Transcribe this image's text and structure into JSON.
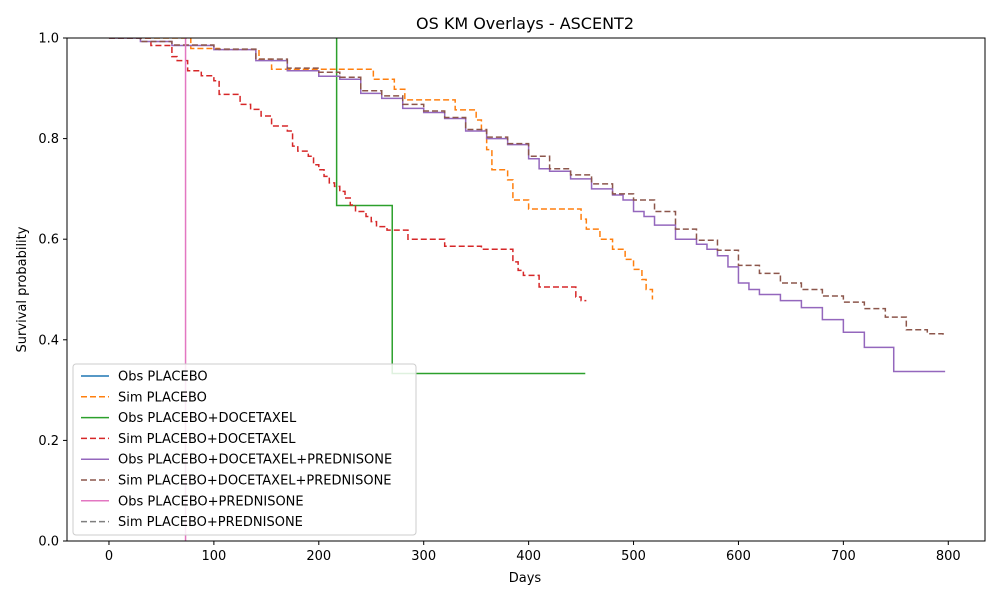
{
  "chart_data": {
    "type": "line",
    "title": "OS KM Overlays - ASCENT2",
    "xlabel": "Days",
    "ylabel": "Survival probability",
    "xlim": [
      -40,
      835
    ],
    "ylim": [
      0.0,
      1.0
    ],
    "x_ticks": [
      0,
      100,
      200,
      300,
      400,
      500,
      600,
      700,
      800
    ],
    "y_ticks": [
      0.0,
      0.2,
      0.4,
      0.6,
      0.8,
      1.0
    ],
    "y_tick_labels": [
      "0.0",
      "0.2",
      "0.4",
      "0.6",
      "0.8",
      "1.0"
    ],
    "grid": false,
    "legend_position": "lower-left",
    "step": true,
    "series": [
      {
        "name": "Obs PLACEBO",
        "color": "#1f77b4",
        "dash": "solid",
        "x": [],
        "y": []
      },
      {
        "name": "Sim PLACEBO",
        "color": "#ff7f0e",
        "dash": "dashed",
        "x": [
          0,
          78,
          105,
          143,
          155,
          192,
          252,
          272,
          282,
          330,
          350,
          355,
          360,
          365,
          380,
          385,
          400,
          450,
          455,
          468,
          480,
          492,
          500,
          508,
          512,
          518
        ],
        "y": [
          1.0,
          0.979,
          0.977,
          0.958,
          0.938,
          0.938,
          0.918,
          0.898,
          0.877,
          0.857,
          0.837,
          0.816,
          0.778,
          0.738,
          0.718,
          0.678,
          0.66,
          0.64,
          0.62,
          0.6,
          0.58,
          0.56,
          0.54,
          0.52,
          0.5,
          0.48
        ]
      },
      {
        "name": "Obs PLACEBO+DOCETAXEL",
        "color": "#2ca02c",
        "dash": "solid",
        "x": [
          217,
          217,
          270,
          454
        ],
        "y": [
          1.0,
          0.667,
          0.333,
          0.333
        ]
      },
      {
        "name": "Sim PLACEBO+DOCETAXEL",
        "color": "#d62728",
        "dash": "dashed",
        "x": [
          0,
          40,
          60,
          65,
          75,
          88,
          100,
          105,
          125,
          135,
          145,
          155,
          170,
          175,
          180,
          190,
          195,
          200,
          205,
          210,
          215,
          220,
          225,
          230,
          235,
          245,
          250,
          255,
          265,
          285,
          320,
          355,
          385,
          390,
          395,
          410,
          445,
          450,
          455
        ],
        "y": [
          1.0,
          0.985,
          0.963,
          0.955,
          0.935,
          0.925,
          0.915,
          0.888,
          0.868,
          0.858,
          0.845,
          0.825,
          0.815,
          0.785,
          0.775,
          0.765,
          0.748,
          0.738,
          0.725,
          0.712,
          0.705,
          0.695,
          0.682,
          0.668,
          0.655,
          0.645,
          0.635,
          0.625,
          0.618,
          0.6,
          0.586,
          0.58,
          0.555,
          0.538,
          0.528,
          0.505,
          0.485,
          0.478,
          0.478
        ]
      },
      {
        "name": "Obs PLACEBO+DOCETAXEL+PREDNISONE",
        "color": "#9467bd",
        "dash": "solid",
        "x": [
          0,
          30,
          60,
          100,
          140,
          170,
          200,
          220,
          240,
          260,
          280,
          300,
          320,
          340,
          360,
          380,
          400,
          410,
          420,
          440,
          460,
          480,
          490,
          500,
          510,
          520,
          540,
          560,
          570,
          580,
          590,
          600,
          610,
          620,
          640,
          660,
          680,
          700,
          720,
          748,
          797
        ],
        "y": [
          1.0,
          0.993,
          0.985,
          0.977,
          0.955,
          0.935,
          0.924,
          0.918,
          0.89,
          0.88,
          0.86,
          0.852,
          0.84,
          0.815,
          0.8,
          0.788,
          0.76,
          0.74,
          0.735,
          0.72,
          0.7,
          0.688,
          0.678,
          0.655,
          0.645,
          0.628,
          0.6,
          0.59,
          0.58,
          0.567,
          0.545,
          0.513,
          0.5,
          0.49,
          0.478,
          0.464,
          0.44,
          0.415,
          0.385,
          0.337,
          0.337
        ]
      },
      {
        "name": "Sim PLACEBO+DOCETAXEL+PREDNISONE",
        "color": "#8c564b",
        "dash": "dashed",
        "x": [
          0,
          30,
          60,
          100,
          140,
          170,
          200,
          220,
          240,
          260,
          280,
          300,
          320,
          340,
          360,
          380,
          400,
          420,
          440,
          460,
          480,
          500,
          520,
          540,
          560,
          580,
          600,
          620,
          640,
          660,
          680,
          700,
          720,
          740,
          760,
          780,
          795
        ],
        "y": [
          1.0,
          0.993,
          0.986,
          0.978,
          0.958,
          0.94,
          0.932,
          0.922,
          0.895,
          0.885,
          0.868,
          0.855,
          0.842,
          0.818,
          0.803,
          0.79,
          0.765,
          0.74,
          0.728,
          0.71,
          0.69,
          0.678,
          0.655,
          0.62,
          0.598,
          0.578,
          0.548,
          0.532,
          0.513,
          0.5,
          0.487,
          0.475,
          0.462,
          0.445,
          0.42,
          0.412,
          0.41
        ]
      },
      {
        "name": "Obs PLACEBO+PREDNISONE",
        "color": "#e377c2",
        "dash": "solid",
        "x": [
          73,
          73,
          73
        ],
        "y": [
          1.0,
          0.0,
          0.0
        ]
      },
      {
        "name": "Sim PLACEBO+PREDNISONE",
        "color": "#7f7f7f",
        "dash": "dashed",
        "x": [],
        "y": []
      }
    ]
  }
}
